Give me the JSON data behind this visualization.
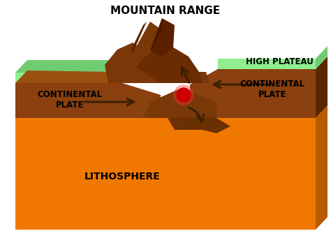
{
  "title": "MOUNTAIN RANGE",
  "label_lithosphere": "LITHOSPHERE",
  "label_continental_left": "CONTINENTAL\nPLATE",
  "label_continental_right": "CONTINENTAL\nPLATE",
  "label_high_plateau": "HIGH PLATEAU",
  "bg_color": "#ffffff",
  "OG": "#F07800",
  "DOG": "#D06400",
  "DOG2": "#B85A00",
  "BR": "#8B4010",
  "BR2": "#7A3808",
  "DBR": "#5A2800",
  "LBR": "#9A5010",
  "GR": "#90EE90",
  "DGR": "#70CC70",
  "RED": "#CC0000",
  "ARW": "#3B2000",
  "title_fontsize": 11,
  "label_fontsize": 8.5,
  "litho_fontsize": 10
}
